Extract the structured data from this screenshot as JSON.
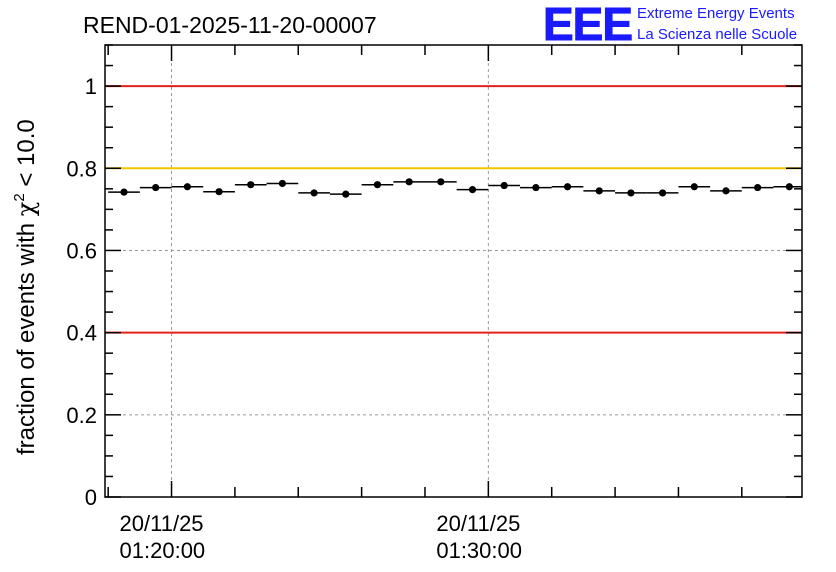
{
  "chart_data": {
    "type": "scatter",
    "title": "REND-01-2025-11-20-00007",
    "ylabel_prefix": "fraction of events with ",
    "ylabel_symbol": "χ",
    "ylabel_sup": "2",
    "ylabel_suffix": " < 10.0",
    "ylim": [
      0,
      1.1
    ],
    "y_ticks": [
      0,
      0.2,
      0.4,
      0.6,
      0.8,
      1
    ],
    "y_tick_labels": [
      "0",
      "0.2",
      "0.4",
      "0.6",
      "0.8",
      "1"
    ],
    "x_tick_labels": [
      {
        "date": "20/11/25",
        "time": "01:20:00",
        "minute": 0
      },
      {
        "date": "20/11/25",
        "time": "01:30:00",
        "minute": 10
      }
    ],
    "xlim_minutes": [
      -2.1,
      19.9
    ],
    "minor_tick_step_minutes": 2,
    "grid": true,
    "reference_lines": [
      {
        "name": "upper-red",
        "y": 1.0,
        "color": "#e3201b"
      },
      {
        "name": "yellow",
        "y": 0.8,
        "color": "#f5c400"
      },
      {
        "name": "lower-red",
        "y": 0.4,
        "color": "#e3201b"
      }
    ],
    "series": [
      {
        "name": "fraction",
        "bin_width_minutes": 1,
        "x": [
          -1.5,
          -0.5,
          0.5,
          1.5,
          2.5,
          3.5,
          4.5,
          5.5,
          6.5,
          7.5,
          8.5,
          9.5,
          10.5,
          11.5,
          12.5,
          13.5,
          14.5,
          15.5,
          16.5,
          17.5,
          18.5,
          19.5
        ],
        "y": [
          0.742,
          0.753,
          0.755,
          0.743,
          0.76,
          0.763,
          0.74,
          0.737,
          0.76,
          0.767,
          0.767,
          0.748,
          0.758,
          0.753,
          0.755,
          0.745,
          0.74,
          0.74,
          0.755,
          0.745,
          0.753,
          0.755
        ]
      }
    ]
  },
  "logo": {
    "letters": "EEE",
    "line1": "Extreme Energy Events",
    "line2": "La Scienza nelle Scuole",
    "color": "#1a1aff"
  }
}
